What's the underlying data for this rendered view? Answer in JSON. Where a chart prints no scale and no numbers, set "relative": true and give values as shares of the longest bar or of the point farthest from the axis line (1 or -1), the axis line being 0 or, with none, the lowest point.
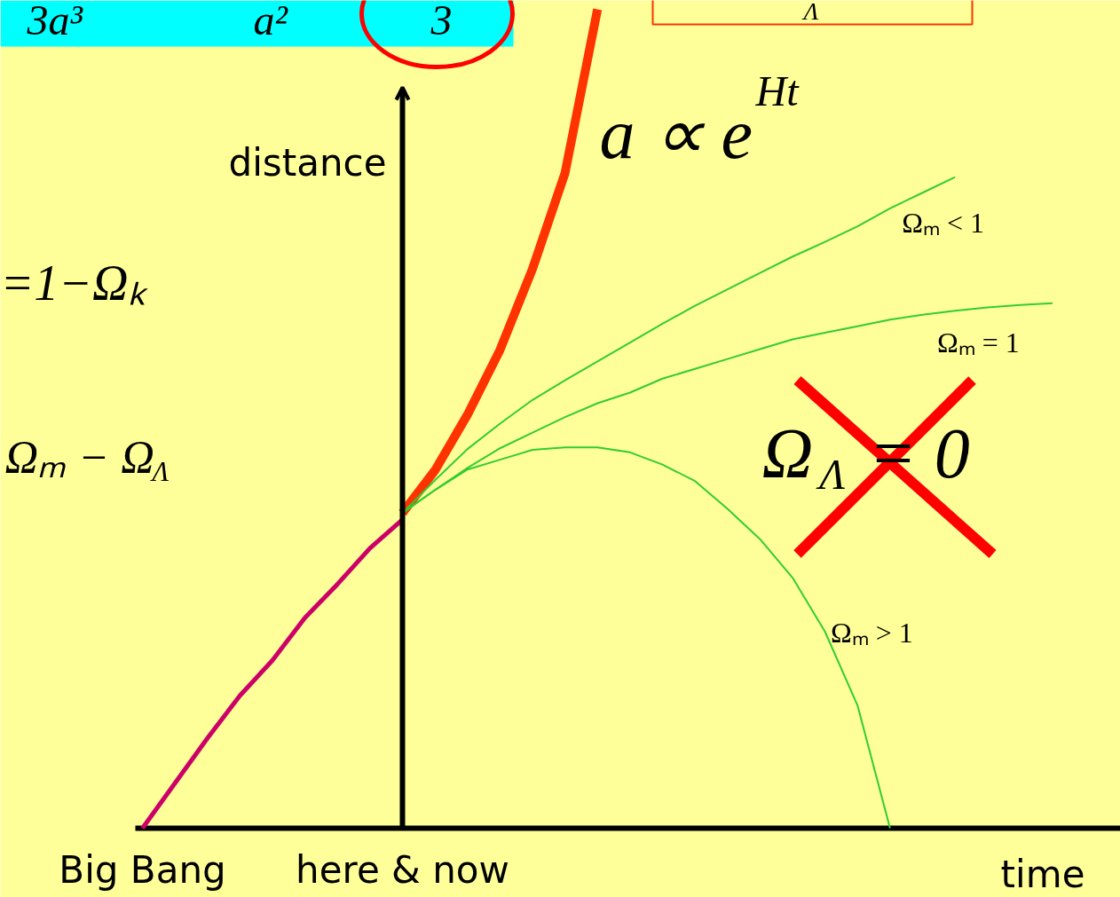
{
  "chart_data": {
    "type": "line",
    "relative": true,
    "xlabel": "time",
    "ylabel": "distance",
    "categories": [
      "Big Bang",
      null,
      null,
      null,
      null,
      null,
      null,
      null,
      "here & now",
      null,
      null,
      null,
      null,
      null,
      null,
      null,
      null,
      null,
      null,
      null,
      null,
      null,
      null,
      null,
      null,
      null,
      null,
      null,
      null,
      null,
      null
    ],
    "ref_lines": [
      {
        "axis": "x",
        "value": "here & now",
        "color": "#000000"
      }
    ],
    "series": [
      {
        "color": "#cc0066",
        "values": [
          0,
          0.055,
          0.11,
          0.162,
          0.205,
          0.257,
          0.298,
          0.342,
          0.377,
          null,
          null,
          null,
          null,
          null,
          null,
          null,
          null,
          null,
          null,
          null,
          null,
          null,
          null,
          null,
          null,
          null,
          null,
          null,
          null,
          null,
          null
        ]
      },
      {
        "color": "#ff3300",
        "values": [
          null,
          null,
          null,
          null,
          null,
          null,
          null,
          null,
          0.385,
          0.437,
          0.505,
          0.584,
          0.683,
          0.8,
          1.0,
          null,
          null,
          null,
          null,
          null,
          null,
          null,
          null,
          null,
          null,
          null,
          null,
          null,
          null,
          null,
          null
        ]
      },
      {
        "name": "Ωₘ < 1",
        "color": "#33cc33",
        "values": [
          null,
          null,
          null,
          null,
          null,
          null,
          null,
          null,
          0.385,
          0.425,
          0.463,
          0.494,
          0.523,
          0.547,
          0.57,
          0.593,
          0.616,
          0.638,
          0.658,
          0.678,
          0.698,
          0.716,
          0.735,
          0.757,
          0.776,
          0.795,
          null,
          null,
          null,
          null,
          null
        ]
      },
      {
        "name": "Ωₘ = 1",
        "color": "#33cc33",
        "values": [
          null,
          null,
          null,
          null,
          null,
          null,
          null,
          null,
          0.385,
          0.413,
          0.44,
          0.464,
          0.483,
          0.502,
          0.519,
          0.532,
          0.549,
          0.561,
          0.573,
          0.585,
          0.597,
          0.605,
          0.613,
          0.621,
          0.627,
          0.632,
          0.636,
          0.639,
          0.641,
          null,
          null
        ]
      },
      {
        "name": "Ωₘ > 1",
        "color": "#33cc33",
        "values": [
          null,
          null,
          null,
          null,
          null,
          null,
          null,
          null,
          0.385,
          0.413,
          0.438,
          0.45,
          0.462,
          0.465,
          0.465,
          0.459,
          0.444,
          0.424,
          0.39,
          0.353,
          0.306,
          0.24,
          0.15,
          0,
          null,
          null,
          null,
          null,
          null,
          null,
          null
        ]
      }
    ],
    "annotations": [
      "3a³",
      "a²",
      "3",
      "Λ",
      "a ∝ e$^{Ht}$",
      "=1−Ωₖ",
      "Ωₘ − Ω$_{Λ}$",
      "Ω$_{Λ}$ = 0"
    ]
  }
}
